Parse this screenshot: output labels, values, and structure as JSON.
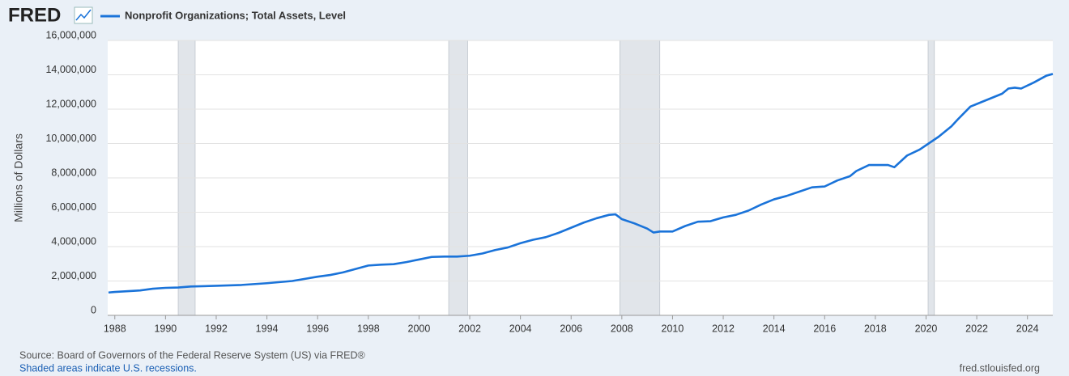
{
  "chart_data": {
    "type": "line",
    "brand": "FRED",
    "ylabel": "Millions of Dollars",
    "source": "Source: Board of Governors of the Federal Reserve System (US) via FRED®",
    "note": "Shaded areas indicate U.S. recessions.",
    "site": "fred.stlouisfed.org",
    "x": [
      1987.75,
      1988,
      1989,
      1989.5,
      1990,
      1990.5,
      1991,
      1992,
      1993,
      1994,
      1995,
      1996,
      1996.5,
      1997,
      1997.5,
      1998,
      1998.5,
      1999,
      1999.5,
      2000,
      2000.5,
      2001,
      2001.5,
      2002,
      2002.5,
      2003,
      2003.5,
      2004,
      2004.5,
      2005,
      2005.5,
      2006,
      2006.5,
      2007,
      2007.5,
      2007.75,
      2008,
      2008.5,
      2009,
      2009.25,
      2009.5,
      2010,
      2010.5,
      2011,
      2011.5,
      2012,
      2012.5,
      2013,
      2013.5,
      2014,
      2014.5,
      2015,
      2015.5,
      2016,
      2016.5,
      2017,
      2017.25,
      2017.75,
      2018.25,
      2018.5,
      2018.75,
      2019.25,
      2019.75,
      2020,
      2020.5,
      2021,
      2021.25,
      2021.75,
      2022,
      2022.5,
      2023,
      2023.25,
      2023.5,
      2023.75,
      2024.25,
      2024.75,
      2025
    ],
    "series": [
      {
        "name": "Nonprofit Organizations; Total Assets, Level",
        "color": "#1a73d9",
        "values": [
          1330000,
          1360000,
          1450000,
          1550000,
          1600000,
          1620000,
          1680000,
          1720000,
          1770000,
          1870000,
          2000000,
          2250000,
          2350000,
          2500000,
          2700000,
          2900000,
          2950000,
          2980000,
          3100000,
          3250000,
          3400000,
          3420000,
          3420000,
          3470000,
          3600000,
          3800000,
          3950000,
          4200000,
          4400000,
          4550000,
          4800000,
          5100000,
          5400000,
          5650000,
          5850000,
          5880000,
          5600000,
          5350000,
          5050000,
          4820000,
          4880000,
          4880000,
          5200000,
          5450000,
          5480000,
          5700000,
          5850000,
          6100000,
          6450000,
          6750000,
          6950000,
          7200000,
          7450000,
          7500000,
          7850000,
          8100000,
          8400000,
          8750000,
          8750000,
          8750000,
          8620000,
          9300000,
          9650000,
          9900000,
          10400000,
          11000000,
          11400000,
          12150000,
          12300000,
          12600000,
          12900000,
          13200000,
          13250000,
          13200000,
          13550000,
          13950000,
          14050000
        ]
      }
    ],
    "recessions": [
      [
        1990.5,
        1991.17
      ],
      [
        2001.17,
        2001.92
      ],
      [
        2007.92,
        2009.5
      ],
      [
        2020.08,
        2020.33
      ]
    ],
    "xlim": [
      1987.72,
      2025.0
    ],
    "xticks": [
      1988,
      1990,
      1992,
      1994,
      1996,
      1998,
      2000,
      2002,
      2004,
      2006,
      2008,
      2010,
      2012,
      2014,
      2016,
      2018,
      2020,
      2022,
      2024
    ],
    "ylim": [
      0,
      16000000
    ],
    "yticks": [
      0,
      {
        "value": 2000000,
        "label": "2,000,000"
      },
      {
        "value": 4000000,
        "label": "4,000,000"
      },
      {
        "value": 6000000,
        "label": "6,000,000"
      },
      {
        "value": 8000000,
        "label": "8,000,000"
      },
      {
        "value": 10000000,
        "label": "10,000,000"
      },
      {
        "value": 12000000,
        "label": "12,000,000"
      },
      {
        "value": 14000000,
        "label": "14,000,000"
      },
      {
        "value": 16000000,
        "label": "16,000,000"
      }
    ],
    "grid": true
  }
}
